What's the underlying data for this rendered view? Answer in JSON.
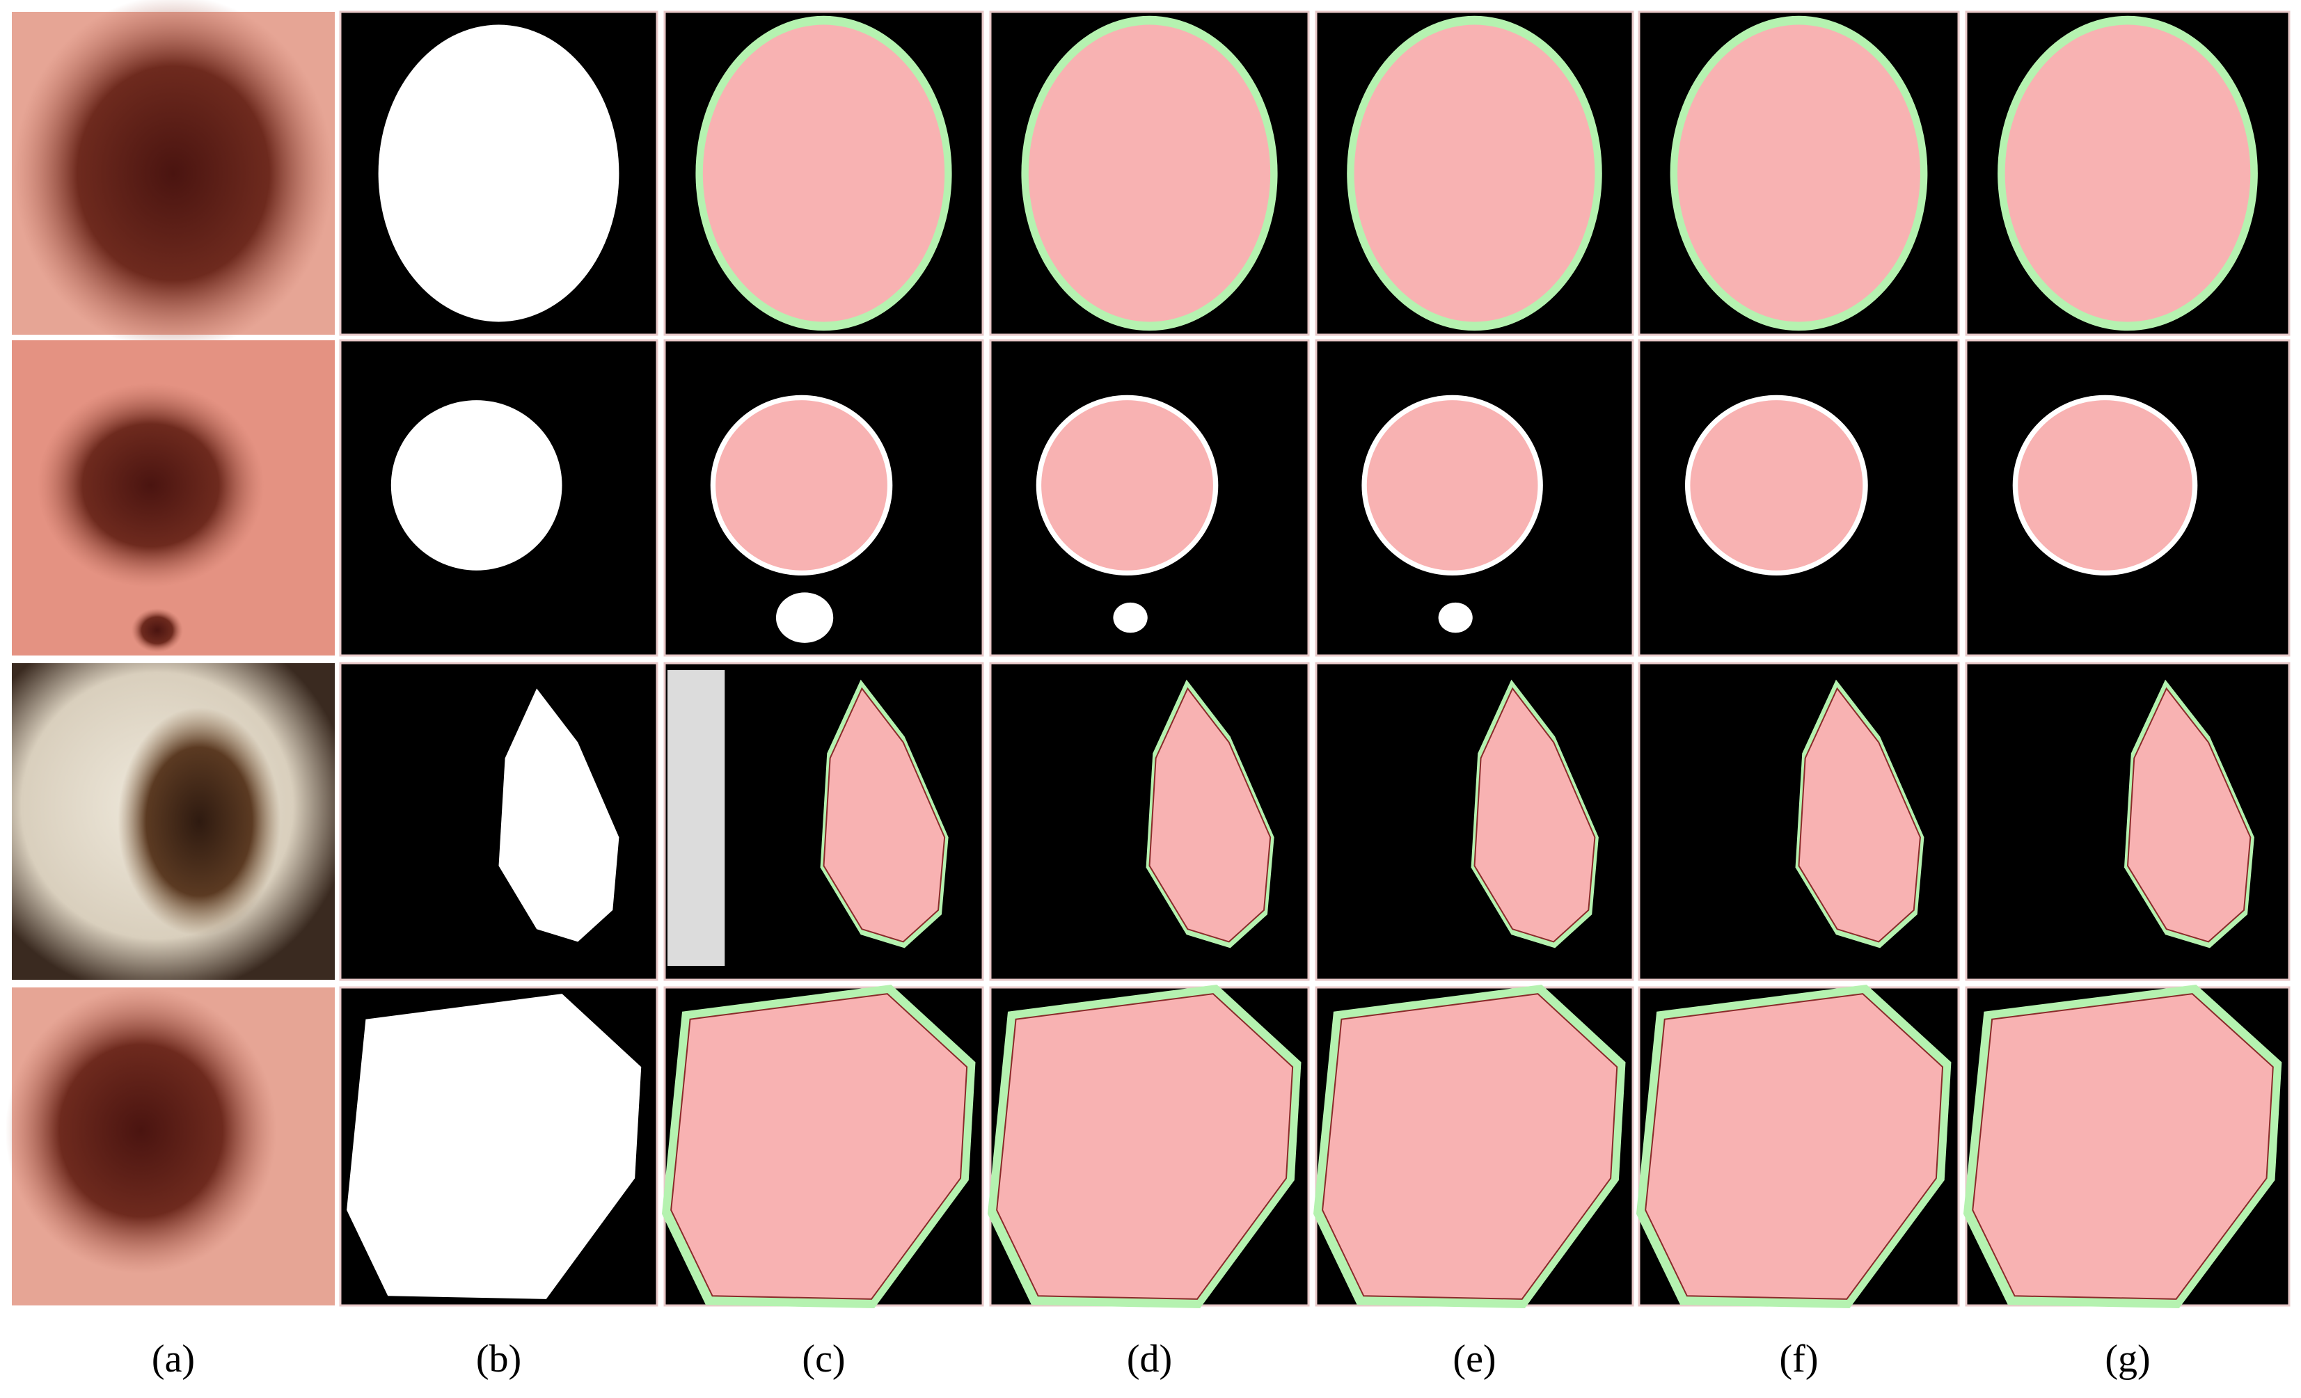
{
  "labels": [
    "(a)",
    "(b)",
    "(c)",
    "(d)",
    "(e)",
    "(f)",
    "(g)"
  ]
}
